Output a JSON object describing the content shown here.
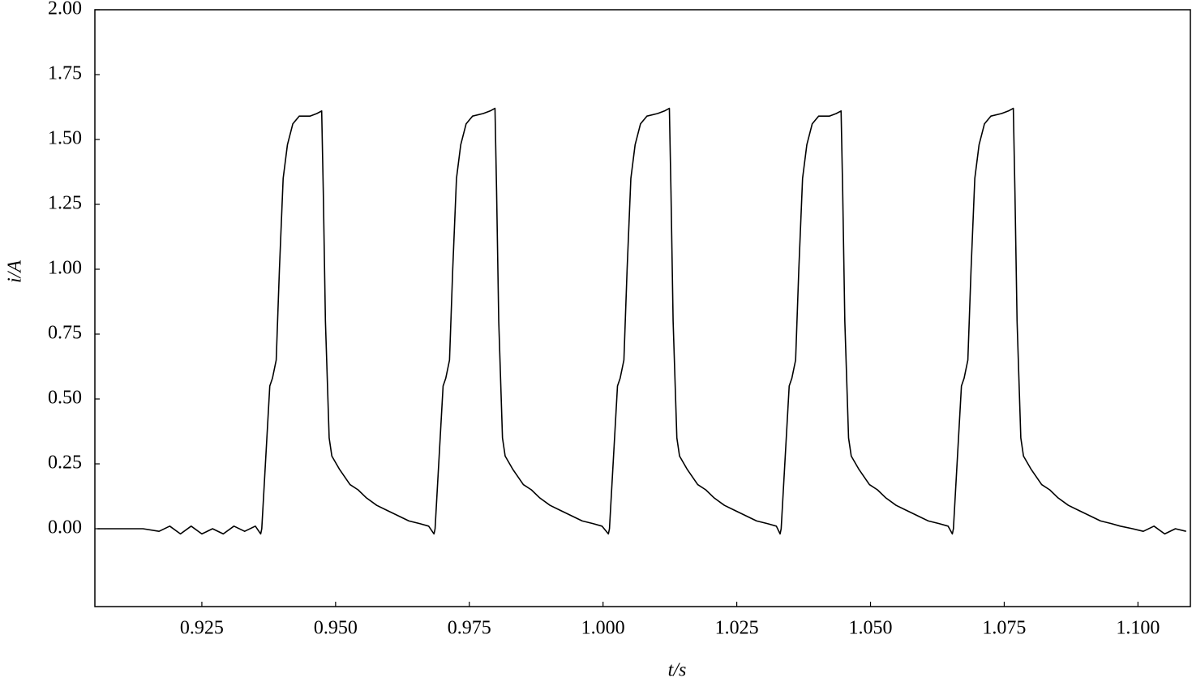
{
  "chart_data": {
    "type": "line",
    "xlabel": "t/s",
    "ylabel": "i/A",
    "color": "#000000",
    "xlim": [
      0.905,
      1.1098
    ],
    "ylim": [
      -0.3,
      2.0
    ],
    "xticks": [
      0.925,
      {
        "value": 0.95,
        "label": "0.950"
      },
      0.975,
      {
        "value": 1.0,
        "label": "1.000"
      },
      1.025,
      {
        "value": 1.05,
        "label": "1.050"
      },
      1.075,
      {
        "value": 1.1,
        "label": "1.100"
      }
    ],
    "yticks": [
      {
        "value": 0,
        "label": "0.00"
      },
      0.25,
      {
        "value": 0.5,
        "label": "0.50"
      },
      0.75,
      {
        "value": 1,
        "label": "1.00"
      },
      1.25,
      {
        "value": 1.5,
        "label": "1.50"
      },
      1.75,
      {
        "value": 2,
        "label": "2.00"
      }
    ],
    "x": [
      0.9055,
      0.908,
      0.911,
      0.914,
      0.917,
      0.919,
      0.921,
      0.923,
      0.925,
      0.927,
      0.929,
      0.931,
      0.933,
      0.935,
      0.936,
      0.9362,
      0.9377,
      0.9382,
      0.9389,
      0.9395,
      0.9402,
      0.941,
      0.942,
      0.9432,
      0.9452,
      0.9465,
      0.9474,
      0.9477,
      0.9481,
      0.9488,
      0.9493,
      0.9507,
      0.9527,
      0.9542,
      0.9557,
      0.9577,
      0.9597,
      0.9617,
      0.9637,
      0.9657,
      0.9674,
      0.9684,
      0.9686,
      0.9701,
      0.9706,
      0.9713,
      0.9719,
      0.9726,
      0.9734,
      0.9744,
      0.9756,
      0.9776,
      0.9789,
      0.9798,
      0.9801,
      0.9805,
      0.9812,
      0.9817,
      0.9831,
      0.9851,
      0.9866,
      0.9881,
      0.9901,
      0.9921,
      0.9941,
      0.9961,
      0.9981,
      0.9998,
      1.001,
      1.0012,
      1.0027,
      1.0032,
      1.0039,
      1.0045,
      1.0052,
      1.006,
      1.007,
      1.0082,
      1.0102,
      1.0115,
      1.0124,
      1.0127,
      1.0131,
      1.0138,
      1.0143,
      1.0157,
      1.0177,
      1.0192,
      1.0207,
      1.0227,
      1.0247,
      1.0267,
      1.0287,
      1.0307,
      1.0324,
      1.0331,
      1.0333,
      1.0348,
      1.0353,
      1.036,
      1.0366,
      1.0373,
      1.0381,
      1.0391,
      1.0403,
      1.0423,
      1.0436,
      1.0445,
      1.0448,
      1.0452,
      1.0459,
      1.0464,
      1.0478,
      1.0498,
      1.0513,
      1.0528,
      1.0548,
      1.0568,
      1.0588,
      1.0608,
      1.0628,
      1.0645,
      1.0653,
      1.0655,
      1.067,
      1.0675,
      1.0682,
      1.0688,
      1.0695,
      1.0703,
      1.0713,
      1.0725,
      1.0745,
      1.0758,
      1.0767,
      1.077,
      1.0774,
      1.0781,
      1.0786,
      1.08,
      1.082,
      1.0835,
      1.085,
      1.087,
      1.089,
      1.091,
      1.093,
      1.095,
      1.0967,
      1.099,
      1.101,
      1.103,
      1.105,
      1.107,
      1.109
    ],
    "values": [
      0.0,
      0.0,
      0.0,
      0.0,
      -0.01,
      0.01,
      -0.02,
      0.01,
      -0.02,
      0.0,
      -0.02,
      0.01,
      -0.01,
      0.01,
      -0.02,
      0.0,
      0.55,
      0.58,
      0.65,
      1.0,
      1.35,
      1.48,
      1.56,
      1.59,
      1.59,
      1.6,
      1.61,
      1.3,
      0.8,
      0.35,
      0.28,
      0.23,
      0.17,
      0.15,
      0.12,
      0.09,
      0.07,
      0.05,
      0.03,
      0.02,
      0.01,
      -0.02,
      0.0,
      0.55,
      0.58,
      0.65,
      1.0,
      1.35,
      1.48,
      1.56,
      1.59,
      1.6,
      1.61,
      1.62,
      1.3,
      0.8,
      0.35,
      0.28,
      0.23,
      0.17,
      0.15,
      0.12,
      0.09,
      0.07,
      0.05,
      0.03,
      0.02,
      0.01,
      -0.02,
      0.0,
      0.55,
      0.58,
      0.65,
      1.0,
      1.35,
      1.48,
      1.56,
      1.59,
      1.6,
      1.61,
      1.62,
      1.3,
      0.8,
      0.35,
      0.28,
      0.23,
      0.17,
      0.15,
      0.12,
      0.09,
      0.07,
      0.05,
      0.03,
      0.02,
      0.01,
      -0.02,
      0.0,
      0.55,
      0.58,
      0.65,
      1.0,
      1.35,
      1.48,
      1.56,
      1.59,
      1.59,
      1.6,
      1.61,
      1.3,
      0.8,
      0.35,
      0.28,
      0.23,
      0.17,
      0.15,
      0.12,
      0.09,
      0.07,
      0.05,
      0.03,
      0.02,
      0.01,
      -0.02,
      0.0,
      0.55,
      0.58,
      0.65,
      1.0,
      1.35,
      1.48,
      1.56,
      1.59,
      1.6,
      1.61,
      1.62,
      1.3,
      0.8,
      0.35,
      0.28,
      0.23,
      0.17,
      0.15,
      0.12,
      0.09,
      0.07,
      0.05,
      0.03,
      0.02,
      0.01,
      0.0,
      -0.01,
      0.01,
      -0.02,
      0.0,
      -0.01
    ]
  }
}
